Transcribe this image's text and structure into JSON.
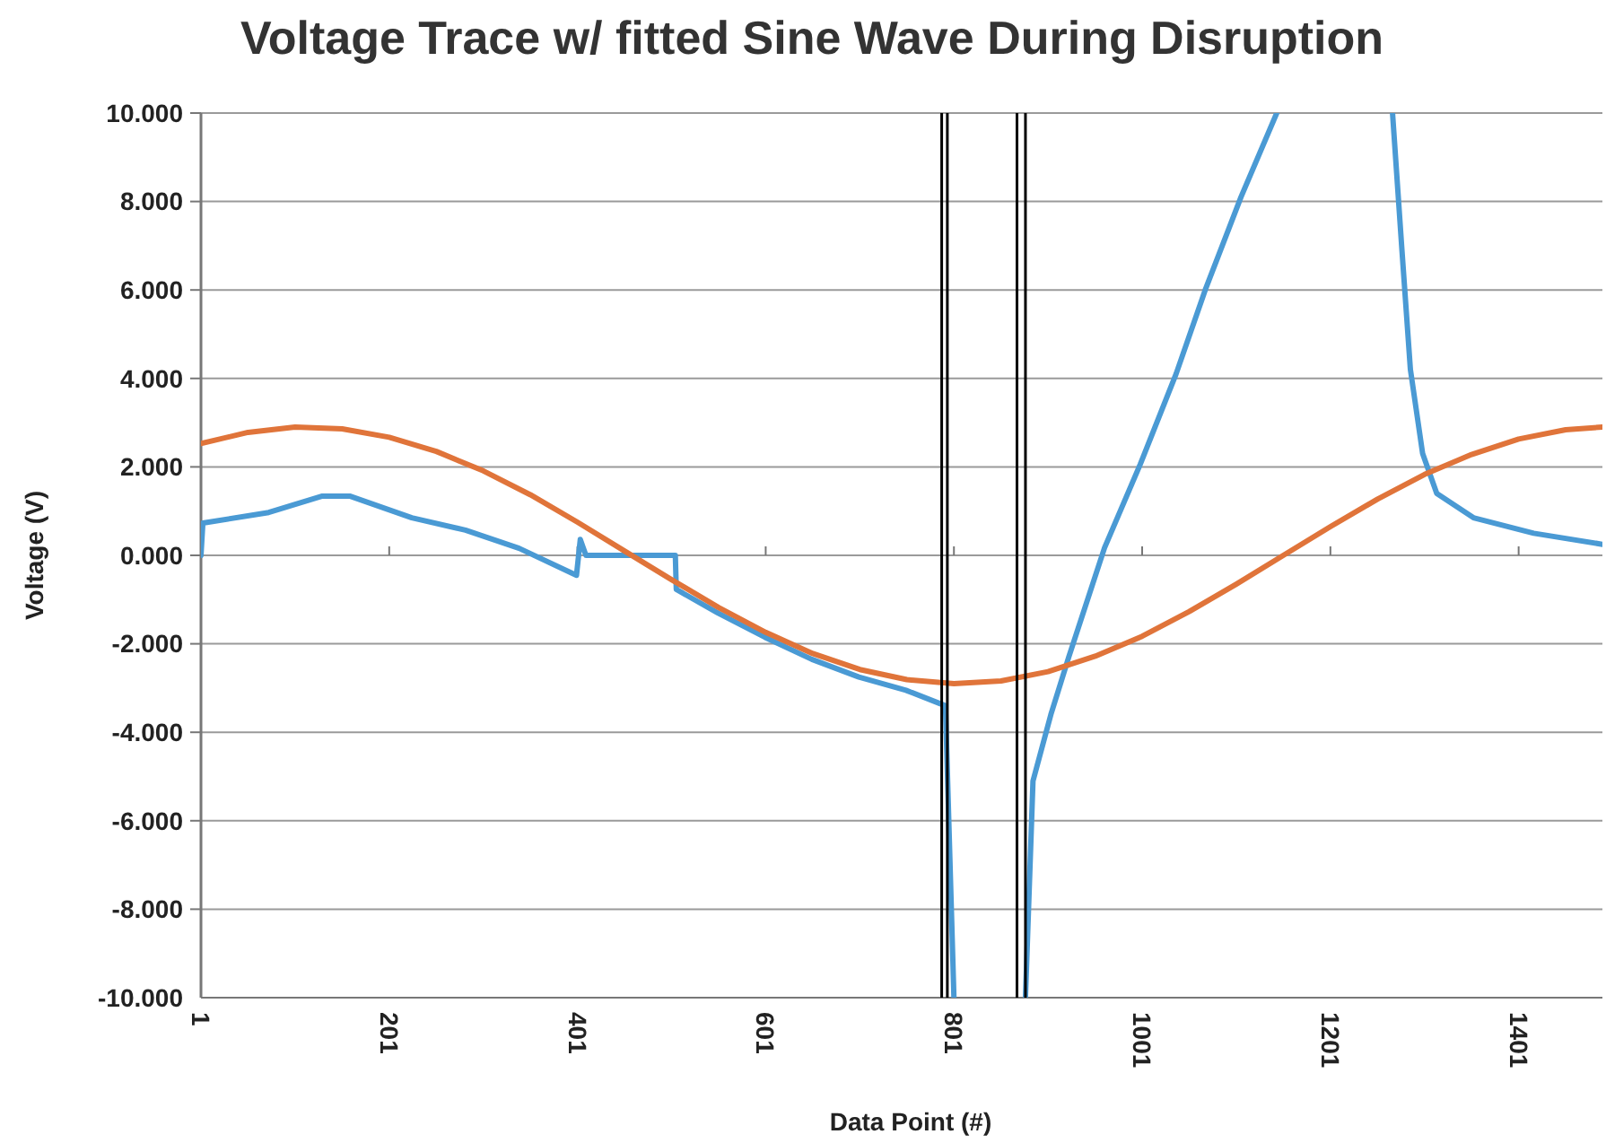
{
  "chart_data": {
    "type": "line",
    "title": "Voltage Trace w/ fitted Sine Wave During Disruption",
    "xlabel": "Data Point (#)",
    "ylabel": "Voltage (V)",
    "xlim": [
      1,
      1490
    ],
    "xticks": [
      1,
      201,
      401,
      601,
      801,
      1001,
      1201,
      1401
    ],
    "ylim": [
      -10,
      10
    ],
    "yticks": [
      {
        "value": -10,
        "label": "-10.000"
      },
      {
        "value": -8,
        "label": "-8.000"
      },
      {
        "value": -6,
        "label": "-6.000"
      },
      {
        "value": -4,
        "label": "-4.000"
      },
      {
        "value": -2,
        "label": "-2.000"
      },
      {
        "value": 0,
        "label": "0.000"
      },
      {
        "value": 2,
        "label": "2.000"
      },
      {
        "value": 4,
        "label": "4.000"
      },
      {
        "value": 6,
        "label": "6.000"
      },
      {
        "value": 8,
        "label": "8.000"
      },
      {
        "value": 10,
        "label": "10.000"
      }
    ],
    "grid": "y",
    "marker": "none",
    "line_style": "solid",
    "ref_lines": [
      {
        "axis": "x",
        "value": 788,
        "color": "#000000"
      },
      {
        "axis": "x",
        "value": 794,
        "color": "#000000"
      },
      {
        "axis": "x",
        "value": 868,
        "color": "#000000"
      },
      {
        "axis": "x",
        "value": 877,
        "color": "#000000"
      }
    ],
    "series": [
      {
        "color": "#4a9ad4",
        "x": [
          1,
          3,
          73,
          130,
          159,
          225,
          282,
          339,
          400,
          404,
          410,
          505,
          506,
          550,
          600,
          650,
          700,
          750,
          792,
          801,
          null,
          877,
          885,
          904,
          923,
          961,
          999,
          1037,
          1068,
          1106,
          1144,
          null,
          1267,
          1277,
          1286,
          1299,
          1314,
          1353,
          1417,
          1490
        ],
        "values": [
          0,
          0.73,
          0.97,
          1.34,
          1.34,
          0.85,
          0.57,
          0.16,
          -0.45,
          0.36,
          0,
          0,
          -0.77,
          -1.3,
          -1.85,
          -2.35,
          -2.75,
          -3.05,
          -3.4,
          -10,
          null,
          -10,
          -5.1,
          -3.6,
          -2.3,
          0.17,
          2.06,
          4.1,
          6,
          8.1,
          10,
          null,
          10,
          6.9,
          4.2,
          2.3,
          1.4,
          0.85,
          0.5,
          0.25
        ]
      },
      {
        "color": "#e0743a",
        "x": [
          1,
          51,
          101,
          151,
          201,
          251,
          301,
          351,
          401,
          451,
          501,
          551,
          601,
          651,
          701,
          751,
          801,
          851,
          901,
          951,
          1001,
          1051,
          1101,
          1151,
          1201,
          1251,
          1301,
          1351,
          1401,
          1451,
          1490
        ],
        "values": [
          2.53,
          2.78,
          2.9,
          2.86,
          2.67,
          2.35,
          1.91,
          1.37,
          0.75,
          0.1,
          -0.55,
          -1.18,
          -1.74,
          -2.22,
          -2.58,
          -2.81,
          -2.9,
          -2.84,
          -2.63,
          -2.28,
          -1.83,
          -1.27,
          -0.65,
          0,
          0.65,
          1.27,
          1.83,
          2.28,
          2.63,
          2.84,
          2.9
        ]
      }
    ]
  }
}
